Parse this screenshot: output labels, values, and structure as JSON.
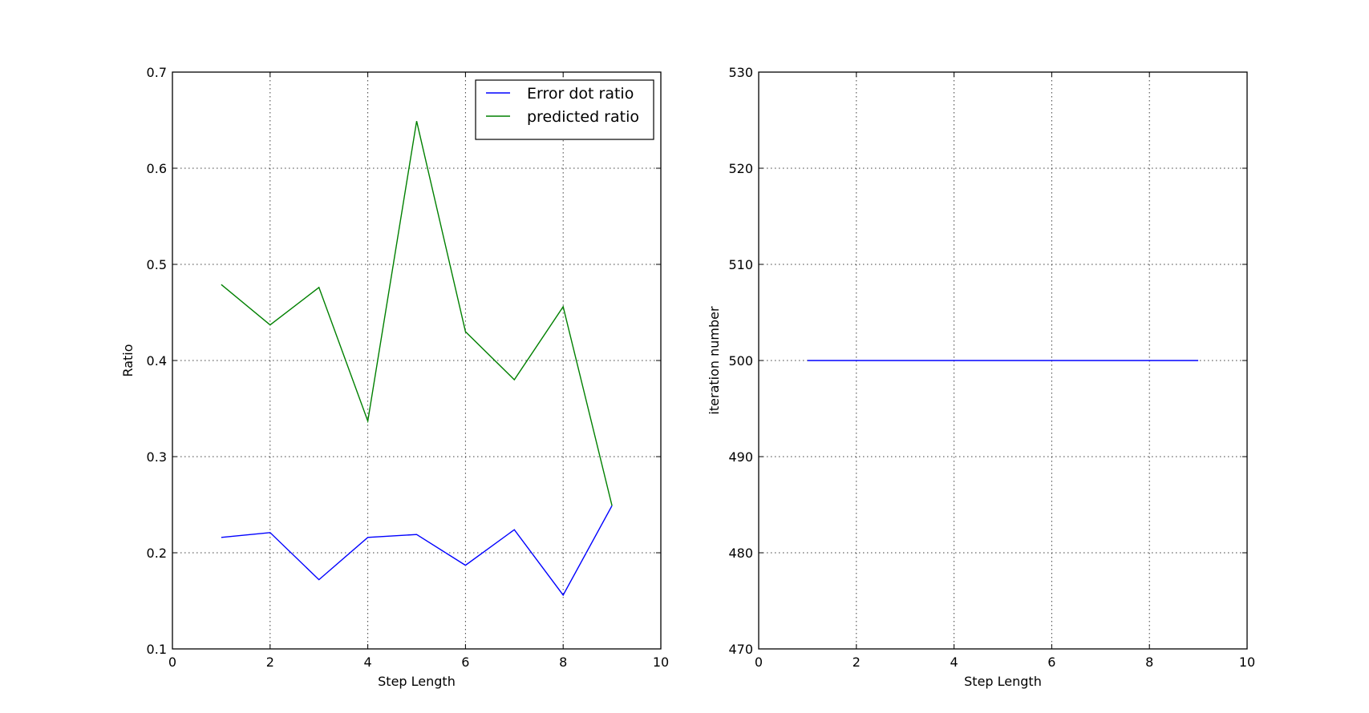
{
  "chart_data": [
    {
      "type": "line",
      "title": "",
      "xlabel": "Step Length",
      "ylabel": "Ratio",
      "xlim": [
        0,
        10
      ],
      "ylim": [
        0.1,
        0.7
      ],
      "x_ticks": [
        "0",
        "2",
        "4",
        "6",
        "8",
        "10"
      ],
      "y_ticks": [
        "0.1",
        "0.2",
        "0.3",
        "0.4",
        "0.5",
        "0.6",
        "0.7"
      ],
      "grid": true,
      "legend_position": "top-right",
      "x": [
        1,
        2,
        3,
        4,
        5,
        6,
        7,
        8,
        9
      ],
      "series": [
        {
          "name": "Error dot ratio",
          "color": "#0000ff",
          "values": [
            0.216,
            0.221,
            0.172,
            0.216,
            0.219,
            0.187,
            0.224,
            0.156,
            0.249
          ]
        },
        {
          "name": "predicted ratio",
          "color": "#008000",
          "values": [
            0.479,
            0.437,
            0.476,
            0.337,
            0.649,
            0.43,
            0.38,
            0.456,
            0.249
          ]
        }
      ]
    },
    {
      "type": "line",
      "title": "",
      "xlabel": "Step Length",
      "ylabel": "iteration number",
      "xlim": [
        0,
        10
      ],
      "ylim": [
        470,
        530
      ],
      "x_ticks": [
        "0",
        "2",
        "4",
        "6",
        "8",
        "10"
      ],
      "y_ticks": [
        "470",
        "480",
        "490",
        "500",
        "510",
        "520",
        "530"
      ],
      "grid": true,
      "x": [
        1,
        2,
        3,
        4,
        5,
        6,
        7,
        8,
        9
      ],
      "series": [
        {
          "color": "#0000ff",
          "values": [
            500,
            500,
            500,
            500,
            500,
            500,
            500,
            500,
            500
          ]
        }
      ]
    }
  ]
}
